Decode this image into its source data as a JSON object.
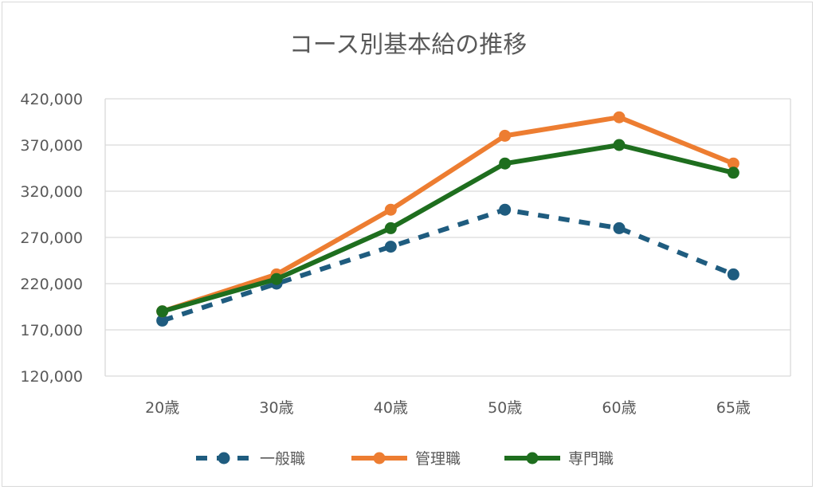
{
  "chart_data": {
    "type": "line",
    "title": "コース別基本給の推移",
    "xlabel": "",
    "ylabel": "",
    "categories": [
      "20歳",
      "30歳",
      "40歳",
      "50歳",
      "60歳",
      "65歳"
    ],
    "ylim": [
      120000,
      420000
    ],
    "y_ticks": [
      "120,000",
      "170,000",
      "220,000",
      "270,000",
      "320,000",
      "370,000",
      "420,000"
    ],
    "grid": true,
    "legend_position": "bottom",
    "series": [
      {
        "name": "一般職",
        "values": [
          180000,
          220000,
          260000,
          300000,
          280000,
          230000
        ],
        "color": "#1f5c7f",
        "dash": true
      },
      {
        "name": "管理職",
        "values": [
          190000,
          230000,
          300000,
          380000,
          400000,
          350000
        ],
        "color": "#ed7d31",
        "dash": false
      },
      {
        "name": "専門職",
        "values": [
          190000,
          225000,
          280000,
          350000,
          370000,
          340000
        ],
        "color": "#1e6e1e",
        "dash": false
      }
    ]
  }
}
